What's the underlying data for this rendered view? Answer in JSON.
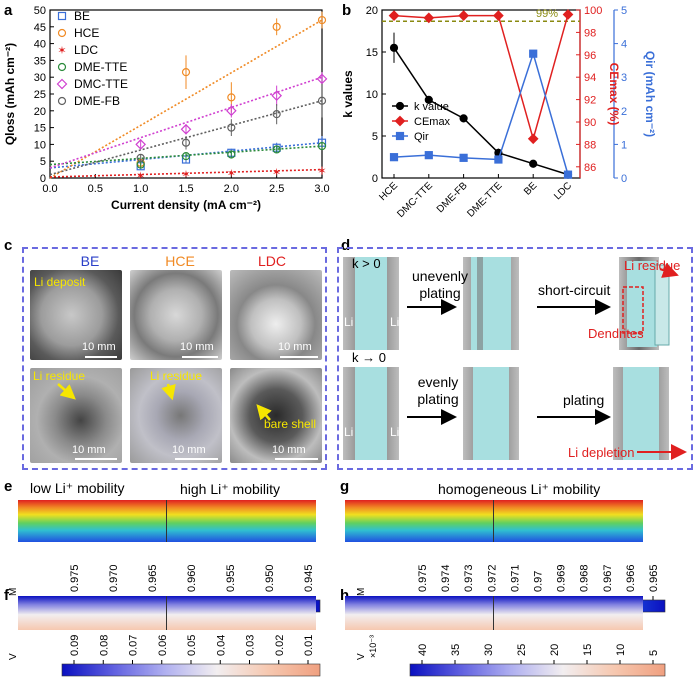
{
  "panels": {
    "a": {
      "label": "a",
      "chart_data": {
        "type": "scatter",
        "xlabel": "Current density (mA cm⁻²)",
        "ylabel": "Qloss (mAh cm⁻²)",
        "xlim": [
          0,
          3.0
        ],
        "ylim": [
          0,
          50
        ],
        "xticks": [
          "0.0",
          "0.5",
          "1.0",
          "1.5",
          "2.0",
          "2.5",
          "3.0"
        ],
        "yticks": [
          "0",
          "5",
          "10",
          "15",
          "20",
          "25",
          "30",
          "35",
          "40",
          "45",
          "50"
        ],
        "x": [
          1.0,
          1.5,
          2.0,
          2.5,
          3.0
        ],
        "series": [
          {
            "name": "BE",
            "color": "#3a6fd8",
            "marker": "square",
            "values": [
              3.5,
              5.5,
              7.5,
              9,
              10.5
            ],
            "err": [
              1,
              1,
              1.2,
              1.5,
              2
            ],
            "fit": [
              [
                0,
                3.0
              ],
              [
                3.0,
                10.5
              ]
            ]
          },
          {
            "name": "HCE",
            "color": "#f08a24",
            "marker": "circle",
            "values": [
              4.5,
              31.5,
              24,
              45,
              47
            ],
            "err": [
              1,
              5,
              4.5,
              2.5,
              2.5
            ],
            "fit": [
              [
                0,
                0
              ],
              [
                3.0,
                47
              ]
            ]
          },
          {
            "name": "LDC",
            "color": "#e02020",
            "marker": "star",
            "values": [
              0.8,
              1.2,
              1.5,
              1.8,
              2.2
            ],
            "err": [
              0.3,
              0.3,
              0.3,
              0.3,
              1.2
            ],
            "fit": [
              [
                0,
                0.3
              ],
              [
                3.0,
                2.5
              ]
            ]
          },
          {
            "name": "DME-TTE",
            "color": "#2a8a3a",
            "marker": "circle",
            "values": [
              4,
              6.5,
              7,
              8.5,
              9.5
            ],
            "err": [
              1,
              1,
              1,
              1,
              1
            ],
            "fit": [
              [
                0,
                4
              ],
              [
                3.0,
                9.5
              ]
            ]
          },
          {
            "name": "DMC-TTE",
            "color": "#d040d0",
            "marker": "diamond",
            "values": [
              10,
              14.5,
              20,
              24.5,
              29.5
            ],
            "err": [
              1.5,
              1.5,
              2,
              3,
              2
            ],
            "fit": [
              [
                0,
                3
              ],
              [
                3.0,
                30
              ]
            ]
          },
          {
            "name": "DME-FB",
            "color": "#606060",
            "marker": "circle",
            "values": [
              6,
              10.5,
              15,
              19,
              23
            ],
            "err": [
              1,
              2,
              2.5,
              3,
              5
            ],
            "fit": [
              [
                0,
                1
              ],
              [
                3.0,
                23
              ]
            ]
          }
        ]
      }
    },
    "b": {
      "label": "b",
      "chart_data": {
        "type": "line",
        "categories": [
          "HCE",
          "DMC-TTE",
          "DME-FB",
          "DME-TTE",
          "BE",
          "LDC"
        ],
        "ylabel_left": "k values",
        "ylabel_right1": "CEmax (%)",
        "ylabel_right2": "Qir (mAh cm⁻²)",
        "ylim_left": [
          0,
          20
        ],
        "ylim_right1": [
          85,
          100
        ],
        "ylim_right2": [
          0,
          5
        ],
        "yticks_left": [
          "0",
          "5",
          "10",
          "15",
          "20"
        ],
        "yticks_right1": [
          "86",
          "88",
          "90",
          "92",
          "94",
          "96",
          "98",
          "100"
        ],
        "yticks_right2": [
          "0",
          "1",
          "2",
          "3",
          "4",
          "5"
        ],
        "reference_line": {
          "value": 99,
          "label": "99%"
        },
        "series": [
          {
            "name": "k value",
            "axis": "left",
            "color": "#000000",
            "marker": "circle",
            "values": [
              15.5,
              9.3,
              7.1,
              3.0,
              1.7,
              0.4
            ],
            "err": [
              1.8,
              0,
              0.4,
              0.5,
              0,
              0.2
            ]
          },
          {
            "name": "CEmax",
            "axis": "right1",
            "color": "#e02020",
            "marker": "diamond",
            "values": [
              99.5,
              99.3,
              99.5,
              99.5,
              88.5,
              99.6
            ]
          },
          {
            "name": "Qir",
            "axis": "right2",
            "color": "#3a6fd8",
            "marker": "square",
            "values": [
              0.62,
              0.68,
              0.6,
              0.55,
              3.7,
              0.1
            ]
          }
        ]
      }
    },
    "c": {
      "label": "c",
      "columns": [
        {
          "title": "BE",
          "color": "#2a3fc8",
          "top_caption": "Li deposit",
          "bottom_caption": "Li residue"
        },
        {
          "title": "HCE",
          "color": "#f08a24",
          "top_caption": "",
          "bottom_caption": "Li residue"
        },
        {
          "title": "LDC",
          "color": "#e02020",
          "top_caption": "",
          "bottom_caption": "bare shell"
        }
      ],
      "scale_label": "10 mm"
    },
    "d": {
      "label": "d",
      "row1": {
        "condition": "k > 0",
        "step1": "unevenly plating",
        "step2": "short-circuit",
        "note1": "Li residue",
        "note2": "Dendrites"
      },
      "row2": {
        "condition": "k → 0",
        "step1": "evenly plating",
        "step2": "plating",
        "note1": "Li depletion"
      },
      "electrode_label": "Li"
    },
    "e": {
      "label": "e",
      "left_title": "low Li⁺ mobility",
      "right_title": "high Li⁺ mobility",
      "unit": "M",
      "ticks": [
        "0.975",
        "0.970",
        "0.965",
        "0.960",
        "0.955",
        "0.950",
        "0.945"
      ]
    },
    "f": {
      "label": "f",
      "unit": "V",
      "ticks": [
        "0.09",
        "0.08",
        "0.07",
        "0.06",
        "0.05",
        "0.04",
        "0.03",
        "0.02",
        "0.01"
      ]
    },
    "g": {
      "label": "g",
      "title": "homogeneous Li⁺ mobility",
      "unit": "M",
      "ticks": [
        "0.975",
        "0.974",
        "0.973",
        "0.972",
        "0.971",
        "0.97",
        "0.969",
        "0.968",
        "0.967",
        "0.966",
        "0.965"
      ]
    },
    "h": {
      "label": "h",
      "unit": "V",
      "multiplier": "×10⁻³",
      "ticks": [
        "40",
        "35",
        "30",
        "25",
        "20",
        "15",
        "10",
        "5"
      ]
    }
  }
}
